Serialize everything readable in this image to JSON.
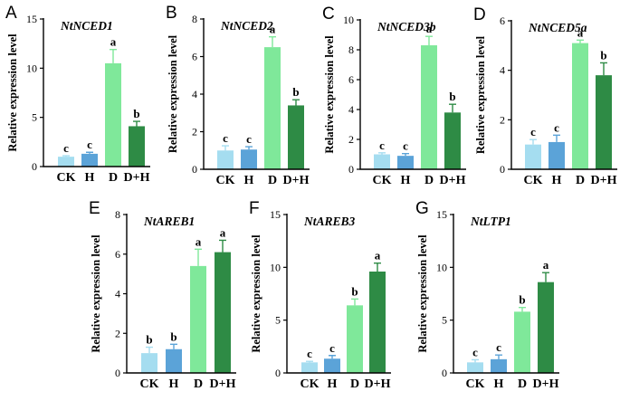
{
  "figure": {
    "colors": {
      "CK": "#A5DDF0",
      "H": "#5BA3D8",
      "D": "#7FE89A",
      "D+H": "#2E8B45"
    },
    "chart_data": [
      {
        "type": "bar",
        "panel": "A",
        "title": "NtNCED1",
        "ylabel": "Relative expression level",
        "categories": [
          "CK",
          "H",
          "D",
          "D+H"
        ],
        "values": [
          1.0,
          1.3,
          10.5,
          4.1
        ],
        "errors": [
          0.1,
          0.15,
          1.4,
          0.5
        ],
        "significance": [
          "c",
          "c",
          "a",
          "b"
        ],
        "ylim": [
          0,
          15
        ],
        "yticks": [
          0,
          5,
          10,
          15
        ]
      },
      {
        "type": "bar",
        "panel": "B",
        "title": "NtNCED2",
        "ylabel": "Relative expression level",
        "categories": [
          "CK",
          "H",
          "D",
          "D+H"
        ],
        "values": [
          1.0,
          1.05,
          6.5,
          3.4
        ],
        "errors": [
          0.25,
          0.15,
          0.55,
          0.3
        ],
        "significance": [
          "c",
          "c",
          "a",
          "b"
        ],
        "ylim": [
          0,
          8
        ],
        "yticks": [
          0,
          2,
          4,
          6,
          8
        ]
      },
      {
        "type": "bar",
        "panel": "C",
        "title": "NtNCED3b",
        "ylabel": "Relative expression level",
        "categories": [
          "CK",
          "H",
          "D",
          "D+H"
        ],
        "values": [
          1.0,
          0.9,
          8.3,
          3.8
        ],
        "errors": [
          0.1,
          0.15,
          0.6,
          0.55
        ],
        "significance": [
          "c",
          "c",
          "a",
          "b"
        ],
        "ylim": [
          0,
          10
        ],
        "yticks": [
          0,
          2,
          4,
          6,
          8,
          10
        ]
      },
      {
        "type": "bar",
        "panel": "D",
        "title": "NtNCED5a",
        "ylabel": "Relative expression level",
        "categories": [
          "CK",
          "H",
          "D",
          "D+H"
        ],
        "values": [
          1.0,
          1.1,
          5.1,
          3.8
        ],
        "errors": [
          0.2,
          0.28,
          0.12,
          0.5
        ],
        "significance": [
          "c",
          "c",
          "a",
          "b"
        ],
        "ylim": [
          0,
          6
        ],
        "yticks": [
          0,
          2,
          4,
          6
        ]
      },
      {
        "type": "bar",
        "panel": "E",
        "title": "NtAREB1",
        "ylabel": "Relative expression level",
        "categories": [
          "CK",
          "H",
          "D",
          "D+H"
        ],
        "values": [
          1.0,
          1.2,
          5.4,
          6.1
        ],
        "errors": [
          0.3,
          0.25,
          0.85,
          0.6
        ],
        "significance": [
          "b",
          "b",
          "a",
          "a"
        ],
        "ylim": [
          0,
          8
        ],
        "yticks": [
          0,
          2,
          4,
          6,
          8
        ]
      },
      {
        "type": "bar",
        "panel": "F",
        "title": "NtAREB3",
        "ylabel": "Relative expression level",
        "categories": [
          "CK",
          "H",
          "D",
          "D+H"
        ],
        "values": [
          1.0,
          1.35,
          6.4,
          9.6
        ],
        "errors": [
          0.1,
          0.3,
          0.6,
          0.8
        ],
        "significance": [
          "c",
          "c",
          "b",
          "a"
        ],
        "ylim": [
          0,
          15
        ],
        "yticks": [
          0,
          5,
          10,
          15
        ]
      },
      {
        "type": "bar",
        "panel": "G",
        "title": "NtLTP1",
        "ylabel": "Relative expression level",
        "categories": [
          "CK",
          "H",
          "D",
          "D+H"
        ],
        "values": [
          1.0,
          1.3,
          5.8,
          8.6
        ],
        "errors": [
          0.25,
          0.4,
          0.4,
          0.9
        ],
        "significance": [
          "c",
          "c",
          "b",
          "a"
        ],
        "ylim": [
          0,
          15
        ],
        "yticks": [
          0,
          5,
          10,
          15
        ]
      }
    ]
  }
}
